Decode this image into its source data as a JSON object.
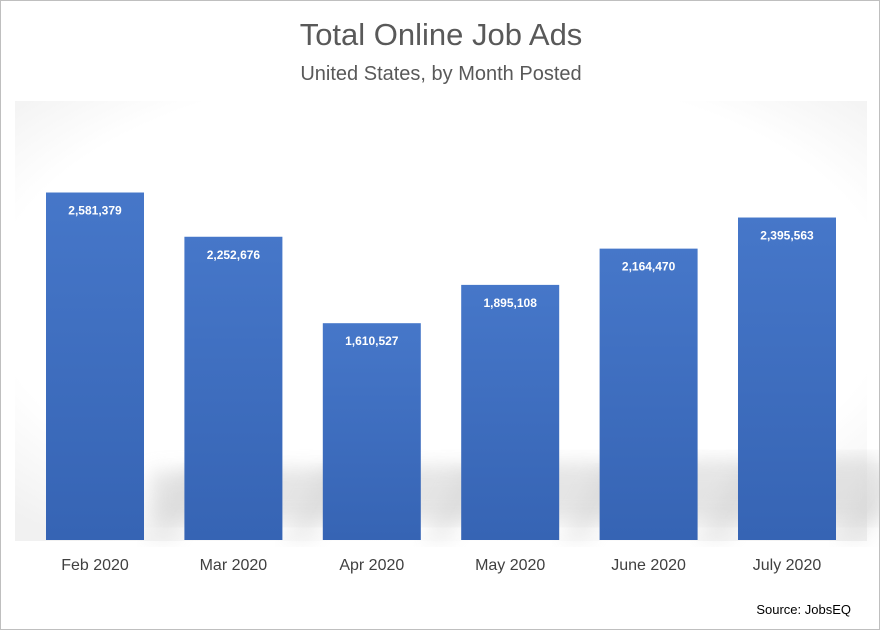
{
  "chart_data": {
    "type": "bar",
    "title": "Total Online Job Ads",
    "subtitle": "United States, by Month Posted",
    "categories": [
      "Feb 2020",
      "Mar 2020",
      "Apr 2020",
      "May 2020",
      "June 2020",
      "July 2020"
    ],
    "values": [
      2581379,
      2252676,
      1610527,
      1895108,
      2164470,
      2395563
    ],
    "data_labels": [
      "2,581,379",
      "2,252,676",
      "1,610,527",
      "1,895,108",
      "2,164,470",
      "2,395,563"
    ],
    "ylim": [
      0,
      2600000
    ],
    "grid": false,
    "legend": "none",
    "bar_color": "#4472c4",
    "source": "Source: JobsEQ"
  }
}
